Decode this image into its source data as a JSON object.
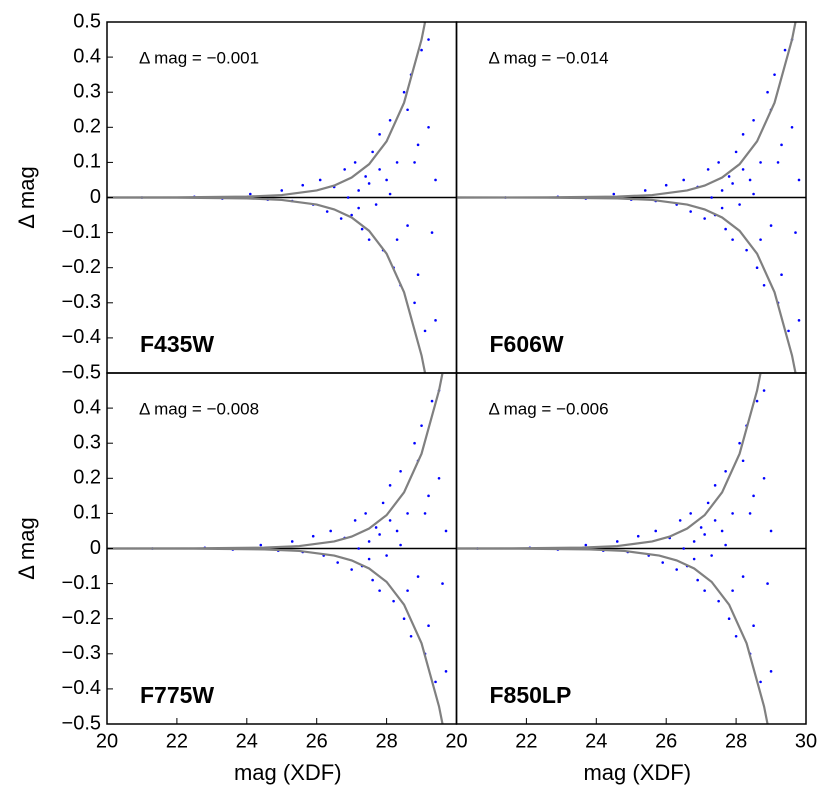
{
  "chart_data": [
    {
      "type": "scatter",
      "title": "F435W",
      "annotation": "Δ mag = −0.001",
      "ylabel": "Δ mag",
      "xlim": [
        20,
        30
      ],
      "ylim": [
        -0.5,
        0.5
      ],
      "yticks": [
        0.5,
        0.4,
        0.3,
        0.2,
        0.1,
        0,
        {
          "value": -0.1,
          "label": "−0.1"
        },
        {
          "value": -0.2,
          "label": "−0.2"
        },
        {
          "value": -0.3,
          "label": "−0.3"
        },
        {
          "value": -0.4,
          "label": "−0.4"
        },
        {
          "value": -0.5,
          "label": "−0.5"
        }
      ],
      "hlines": [
        0
      ],
      "series": [
        {
          "style": "points",
          "color": "#0000ff",
          "x": [
            21.0,
            22.5,
            23.3,
            24.1,
            24.6,
            25.0,
            25.3,
            25.6,
            25.9,
            26.1,
            26.3,
            26.5,
            26.7,
            26.8,
            27.0,
            27.1,
            27.2,
            27.3,
            27.4,
            27.5,
            27.6,
            27.7,
            27.8,
            27.9,
            28.0,
            28.1,
            28.2,
            28.3,
            28.4,
            28.5,
            28.6,
            28.7,
            28.8,
            28.9,
            29.0,
            29.1,
            29.2,
            29.3,
            29.4,
            27.2,
            27.8,
            28.3,
            28.6,
            28.9,
            29.2,
            29.4,
            28.1,
            27.5,
            26.9,
            28.8
          ],
          "values": [
            0.0,
            0.002,
            -0.003,
            0.01,
            -0.006,
            0.02,
            -0.01,
            0.035,
            -0.02,
            0.05,
            -0.04,
            0.03,
            -0.06,
            0.08,
            -0.05,
            0.1,
            0.02,
            -0.09,
            0.06,
            -0.12,
            0.13,
            -0.02,
            0.18,
            -0.15,
            0.05,
            0.22,
            -0.2,
            0.1,
            -0.25,
            0.3,
            -0.08,
            0.35,
            -0.3,
            0.15,
            0.42,
            -0.38,
            0.2,
            -0.1,
            0.05,
            -0.03,
            0.08,
            -0.12,
            0.25,
            -0.22,
            0.45,
            -0.35,
            0.01,
            0.04,
            0.0,
            0.1
          ]
        },
        {
          "style": "line",
          "color": "#808080",
          "x": [
            20,
            22,
            24,
            25,
            26,
            26.5,
            27,
            27.5,
            28,
            28.5,
            29,
            29.1
          ],
          "values": [
            0,
            0.0003,
            0.0025,
            0.007,
            0.02,
            0.034,
            0.057,
            0.095,
            0.16,
            0.27,
            0.45,
            0.5
          ]
        },
        {
          "style": "line",
          "color": "#808080",
          "x": [
            20,
            22,
            24,
            25,
            26,
            26.5,
            27,
            27.5,
            28,
            28.5,
            29,
            29.1
          ],
          "values": [
            0,
            -0.0003,
            -0.0025,
            -0.007,
            -0.02,
            -0.034,
            -0.057,
            -0.095,
            -0.16,
            -0.27,
            -0.45,
            -0.5
          ]
        }
      ]
    },
    {
      "type": "scatter",
      "title": "F606W",
      "annotation": "Δ mag = −0.014",
      "xlim": [
        20,
        30
      ],
      "ylim": [
        -0.5,
        0.5
      ],
      "hlines": [
        0
      ],
      "series": [
        {
          "style": "points",
          "color": "#0000ff",
          "x": [
            21.4,
            22.9,
            23.7,
            24.5,
            25.0,
            25.4,
            25.7,
            26.0,
            26.3,
            26.5,
            26.7,
            26.9,
            27.1,
            27.2,
            27.4,
            27.5,
            27.6,
            27.7,
            27.8,
            27.9,
            28.0,
            28.1,
            28.2,
            28.3,
            28.4,
            28.5,
            28.6,
            28.7,
            28.8,
            28.9,
            29.0,
            29.1,
            29.2,
            29.3,
            29.4,
            29.5,
            29.6,
            29.7,
            29.8,
            27.6,
            28.2,
            28.7,
            29.0,
            29.3,
            29.6,
            29.8,
            28.5,
            27.9,
            27.3,
            29.2
          ],
          "values": [
            0.0,
            0.002,
            -0.003,
            0.01,
            -0.006,
            0.02,
            -0.01,
            0.035,
            -0.02,
            0.05,
            -0.04,
            0.03,
            -0.06,
            0.08,
            -0.05,
            0.1,
            0.02,
            -0.09,
            0.06,
            -0.12,
            0.13,
            -0.02,
            0.18,
            -0.15,
            0.05,
            0.22,
            -0.2,
            0.1,
            -0.25,
            0.3,
            -0.08,
            0.35,
            -0.3,
            0.15,
            0.42,
            -0.38,
            0.2,
            -0.1,
            0.05,
            -0.03,
            0.08,
            -0.12,
            0.25,
            -0.22,
            0.45,
            -0.35,
            0.01,
            0.04,
            0.0,
            0.1
          ]
        },
        {
          "style": "line",
          "color": "#808080",
          "x": [
            20,
            22.6,
            24.6,
            25.6,
            26.6,
            27.1,
            27.6,
            28.1,
            28.6,
            29.1,
            29.6,
            29.7
          ],
          "values": [
            0,
            0.0003,
            0.0025,
            0.007,
            0.02,
            0.034,
            0.057,
            0.095,
            0.16,
            0.27,
            0.45,
            0.5
          ]
        },
        {
          "style": "line",
          "color": "#808080",
          "x": [
            20,
            22.6,
            24.6,
            25.6,
            26.6,
            27.1,
            27.6,
            28.1,
            28.6,
            29.1,
            29.6,
            29.7
          ],
          "values": [
            0,
            -0.0003,
            -0.0025,
            -0.007,
            -0.02,
            -0.034,
            -0.057,
            -0.095,
            -0.16,
            -0.27,
            -0.45,
            -0.5
          ]
        }
      ]
    },
    {
      "type": "scatter",
      "title": "F775W",
      "annotation": "Δ mag = −0.008",
      "ylabel": "Δ mag",
      "xlabel": "mag (XDF)",
      "xlim": [
        20,
        30
      ],
      "ylim": [
        -0.5,
        0.5
      ],
      "xticks": [
        20,
        22,
        24,
        26,
        28
      ],
      "yticks": [
        0.4,
        0.3,
        0.2,
        0.1,
        0,
        {
          "value": -0.1,
          "label": "−0.1"
        },
        {
          "value": -0.2,
          "label": "−0.2"
        },
        {
          "value": -0.3,
          "label": "−0.3"
        },
        {
          "value": -0.4,
          "label": "−0.4"
        },
        {
          "value": -0.5,
          "label": "−0.5"
        }
      ],
      "hlines": [
        0
      ],
      "series": [
        {
          "style": "points",
          "color": "#0000ff",
          "x": [
            21.3,
            22.8,
            23.6,
            24.4,
            24.9,
            25.3,
            25.6,
            25.9,
            26.2,
            26.4,
            26.6,
            26.8,
            27.0,
            27.1,
            27.3,
            27.4,
            27.5,
            27.6,
            27.7,
            27.8,
            27.9,
            28.0,
            28.1,
            28.2,
            28.3,
            28.4,
            28.5,
            28.6,
            28.7,
            28.8,
            28.9,
            29.0,
            29.1,
            29.2,
            29.3,
            29.4,
            29.5,
            29.6,
            29.7,
            27.5,
            28.1,
            28.6,
            28.9,
            29.2,
            29.5,
            29.7,
            28.4,
            27.8,
            27.2,
            29.1
          ],
          "values": [
            0.0,
            0.002,
            -0.003,
            0.01,
            -0.006,
            0.02,
            -0.01,
            0.035,
            -0.02,
            0.05,
            -0.04,
            0.03,
            -0.06,
            0.08,
            -0.05,
            0.1,
            0.02,
            -0.09,
            0.06,
            -0.12,
            0.13,
            -0.02,
            0.18,
            -0.15,
            0.05,
            0.22,
            -0.2,
            0.1,
            -0.25,
            0.3,
            -0.08,
            0.35,
            -0.3,
            0.15,
            0.42,
            -0.38,
            0.2,
            -0.1,
            0.05,
            -0.03,
            0.08,
            -0.12,
            0.25,
            -0.22,
            0.45,
            -0.35,
            0.01,
            0.04,
            0.0,
            0.1
          ]
        },
        {
          "style": "line",
          "color": "#808080",
          "x": [
            20,
            22.5,
            24.5,
            25.5,
            26.5,
            27,
            27.5,
            28,
            28.5,
            29,
            29.5,
            29.6
          ],
          "values": [
            0,
            0.0003,
            0.0025,
            0.007,
            0.02,
            0.034,
            0.057,
            0.095,
            0.16,
            0.27,
            0.45,
            0.5
          ]
        },
        {
          "style": "line",
          "color": "#808080",
          "x": [
            20,
            22.5,
            24.5,
            25.5,
            26.5,
            27,
            27.5,
            28,
            28.5,
            29,
            29.5,
            29.6
          ],
          "values": [
            0,
            -0.0003,
            -0.0025,
            -0.007,
            -0.02,
            -0.034,
            -0.057,
            -0.095,
            -0.16,
            -0.27,
            -0.45,
            -0.5
          ]
        }
      ]
    },
    {
      "type": "scatter",
      "title": "F850LP",
      "annotation": "Δ mag = −0.006",
      "xlabel": "mag (XDF)",
      "xlim": [
        20,
        30
      ],
      "ylim": [
        -0.5,
        0.5
      ],
      "xticks": [
        20,
        22,
        24,
        26,
        28,
        30
      ],
      "hlines": [
        0
      ],
      "series": [
        {
          "style": "points",
          "color": "#0000ff",
          "x": [
            20.6,
            22.1,
            22.9,
            23.7,
            24.2,
            24.6,
            24.9,
            25.2,
            25.5,
            25.7,
            25.9,
            26.1,
            26.3,
            26.4,
            26.6,
            26.7,
            26.8,
            26.9,
            27.0,
            27.1,
            27.2,
            27.3,
            27.4,
            27.5,
            27.6,
            27.7,
            27.8,
            27.9,
            28.0,
            28.1,
            28.2,
            28.3,
            28.4,
            28.5,
            28.6,
            28.7,
            28.8,
            28.9,
            29.0,
            26.8,
            27.4,
            27.9,
            28.2,
            28.5,
            28.8,
            29.0,
            27.7,
            27.1,
            26.5,
            28.4
          ],
          "values": [
            0.0,
            0.002,
            -0.003,
            0.01,
            -0.006,
            0.02,
            -0.01,
            0.035,
            -0.02,
            0.05,
            -0.04,
            0.03,
            -0.06,
            0.08,
            -0.05,
            0.1,
            0.02,
            -0.09,
            0.06,
            -0.12,
            0.13,
            -0.02,
            0.18,
            -0.15,
            0.05,
            0.22,
            -0.2,
            0.1,
            -0.25,
            0.3,
            -0.08,
            0.35,
            -0.3,
            0.15,
            0.42,
            -0.38,
            0.2,
            -0.1,
            0.05,
            -0.03,
            0.08,
            -0.12,
            0.25,
            -0.22,
            0.45,
            -0.35,
            0.01,
            0.04,
            0.0,
            0.1
          ]
        },
        {
          "style": "line",
          "color": "#808080",
          "x": [
            20,
            21.6,
            23.6,
            24.6,
            25.6,
            26.1,
            26.6,
            27.1,
            27.6,
            28.1,
            28.6,
            28.7
          ],
          "values": [
            0,
            0.0003,
            0.0025,
            0.007,
            0.02,
            0.034,
            0.057,
            0.095,
            0.16,
            0.27,
            0.45,
            0.5
          ]
        },
        {
          "style": "line",
          "color": "#808080",
          "x": [
            20,
            21.8,
            23.8,
            24.8,
            25.8,
            26.3,
            26.8,
            27.3,
            27.8,
            28.3,
            28.8,
            28.9
          ],
          "values": [
            0,
            -0.0003,
            -0.0025,
            -0.007,
            -0.02,
            -0.034,
            -0.057,
            -0.095,
            -0.16,
            -0.27,
            -0.45,
            -0.5
          ]
        }
      ]
    }
  ]
}
